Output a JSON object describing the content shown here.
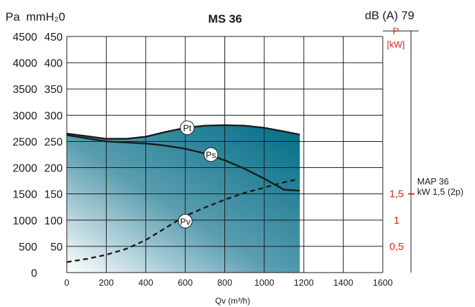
{
  "chart_data": {
    "type": "area",
    "title": "MS 36",
    "header_left_pa": "Pa",
    "header_left_mmh2o": "mmH₂0",
    "header_right": "dB (A) 79",
    "xlabel": "Qv (m³/h)",
    "xlim": [
      0,
      1600
    ],
    "x_ticks": [
      "0",
      "200",
      "400",
      "600",
      "800",
      "1000",
      "1200",
      "1400",
      "1600"
    ],
    "ylim_pa": [
      0,
      4500
    ],
    "y_ticks_pa": [
      "4500",
      "4000",
      "3500",
      "3000",
      "2500",
      "2000",
      "1500",
      "1000",
      "500",
      "0"
    ],
    "y_ticks_mmh2o": [
      "450",
      "400",
      "350",
      "300",
      "250",
      "200",
      "150",
      "100",
      "50"
    ],
    "power_axis": {
      "label_line1": "P",
      "label_line2": "[kW]",
      "ticks": [
        {
          "label": "1,5",
          "pa": 1500
        },
        {
          "label": "1",
          "pa": 1000
        },
        {
          "label": "0,5",
          "pa": 500
        }
      ]
    },
    "motor_note": {
      "line1": "MAP 36",
      "line2": "kW 1,5 (2p)"
    },
    "series": [
      {
        "name": "Pt",
        "x": [
          0,
          100,
          200,
          300,
          400,
          500,
          600,
          700,
          800,
          900,
          1000,
          1100,
          1180
        ],
        "values": [
          2650,
          2600,
          2550,
          2550,
          2590,
          2680,
          2760,
          2800,
          2810,
          2800,
          2760,
          2690,
          2630
        ]
      },
      {
        "name": "Ps",
        "x": [
          0,
          100,
          200,
          300,
          400,
          500,
          600,
          700,
          800,
          900,
          1000,
          1100,
          1180
        ],
        "values": [
          2620,
          2560,
          2500,
          2480,
          2460,
          2420,
          2360,
          2270,
          2140,
          1980,
          1790,
          1580,
          1560
        ]
      },
      {
        "name": "Pv",
        "x": [
          0,
          100,
          200,
          300,
          400,
          500,
          600,
          700,
          800,
          900,
          1000,
          1100,
          1160
        ],
        "values": [
          200,
          260,
          340,
          450,
          620,
          850,
          1080,
          1240,
          1390,
          1520,
          1620,
          1720,
          1770
        ]
      }
    ],
    "curve_labels": [
      {
        "text": "Pt",
        "x": 610,
        "y": 2760
      },
      {
        "text": "Ps",
        "x": 730,
        "y": 2250
      },
      {
        "text": "Pv",
        "x": 600,
        "y": 980
      }
    ],
    "colors": {
      "fill_dark": "#006e86",
      "fill_light": "#ffffff",
      "accent_red": "#e2231a",
      "grid": "#1a1a1a"
    }
  }
}
